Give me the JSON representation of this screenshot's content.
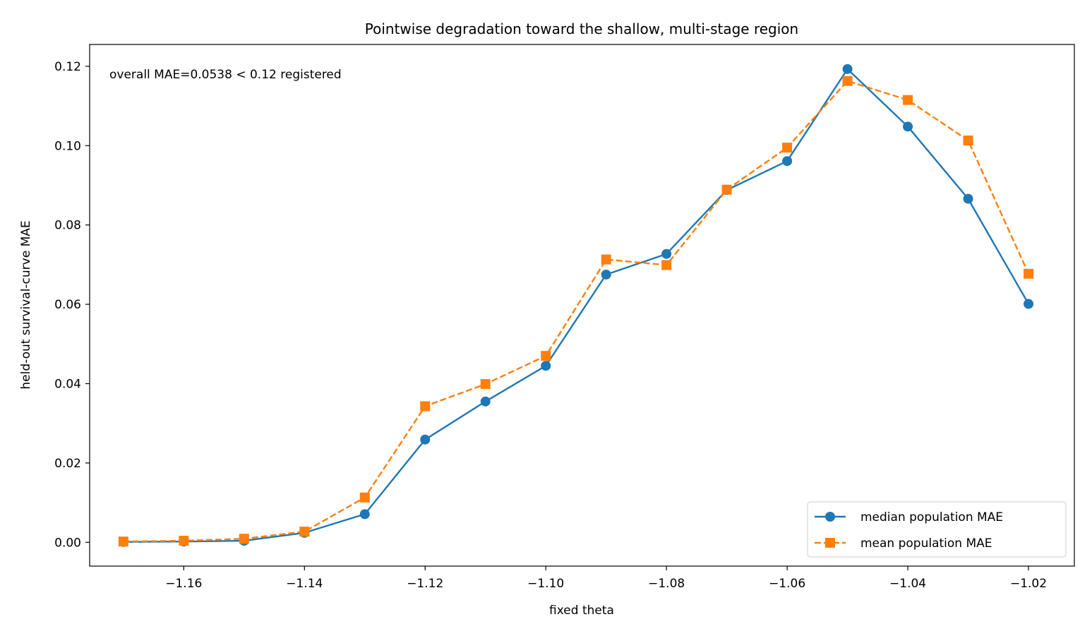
{
  "chart_data": {
    "type": "line",
    "title": "Pointwise degradation toward the shallow, multi-stage region",
    "xlabel": "fixed theta",
    "ylabel": "held-out survival-curve MAE",
    "annotation": "overall MAE=0.0538 < 0.12 registered",
    "xlim": [
      -1.1756,
      -1.0124
    ],
    "ylim": [
      -0.006,
      0.1255
    ],
    "xticks": [
      -1.16,
      -1.14,
      -1.12,
      -1.1,
      -1.08,
      -1.06,
      -1.04,
      -1.02
    ],
    "xtick_labels": [
      "−1.16",
      "−1.14",
      "−1.12",
      "−1.10",
      "−1.08",
      "−1.06",
      "−1.04",
      "−1.02"
    ],
    "yticks": [
      0.0,
      0.02,
      0.04,
      0.06,
      0.08,
      0.1,
      0.12
    ],
    "ytick_labels": [
      "0.00",
      "0.02",
      "0.04",
      "0.06",
      "0.08",
      "0.10",
      "0.12"
    ],
    "grid": false,
    "legend_position": "lower-right",
    "x": [
      -1.17,
      -1.16,
      -1.15,
      -1.14,
      -1.13,
      -1.12,
      -1.11,
      -1.1,
      -1.09,
      -1.08,
      -1.07,
      -1.06,
      -1.05,
      -1.04,
      -1.03,
      -1.02
    ],
    "series": [
      {
        "name": "median population MAE",
        "color": "#1f77b4",
        "style": "solid",
        "marker": "circle",
        "values": [
          0.0001,
          0.0002,
          0.0004,
          0.0024,
          0.0071,
          0.0259,
          0.0355,
          0.0445,
          0.0675,
          0.0727,
          0.0888,
          0.0961,
          0.1193,
          0.1048,
          0.0866,
          0.0601
        ]
      },
      {
        "name": "mean population MAE",
        "color": "#ff7f0e",
        "style": "dashed",
        "marker": "square",
        "values": [
          0.0002,
          0.0004,
          0.0009,
          0.0027,
          0.0113,
          0.0343,
          0.0399,
          0.047,
          0.0713,
          0.0699,
          0.0889,
          0.0995,
          0.1163,
          0.1115,
          0.1013,
          0.0677
        ]
      }
    ]
  }
}
